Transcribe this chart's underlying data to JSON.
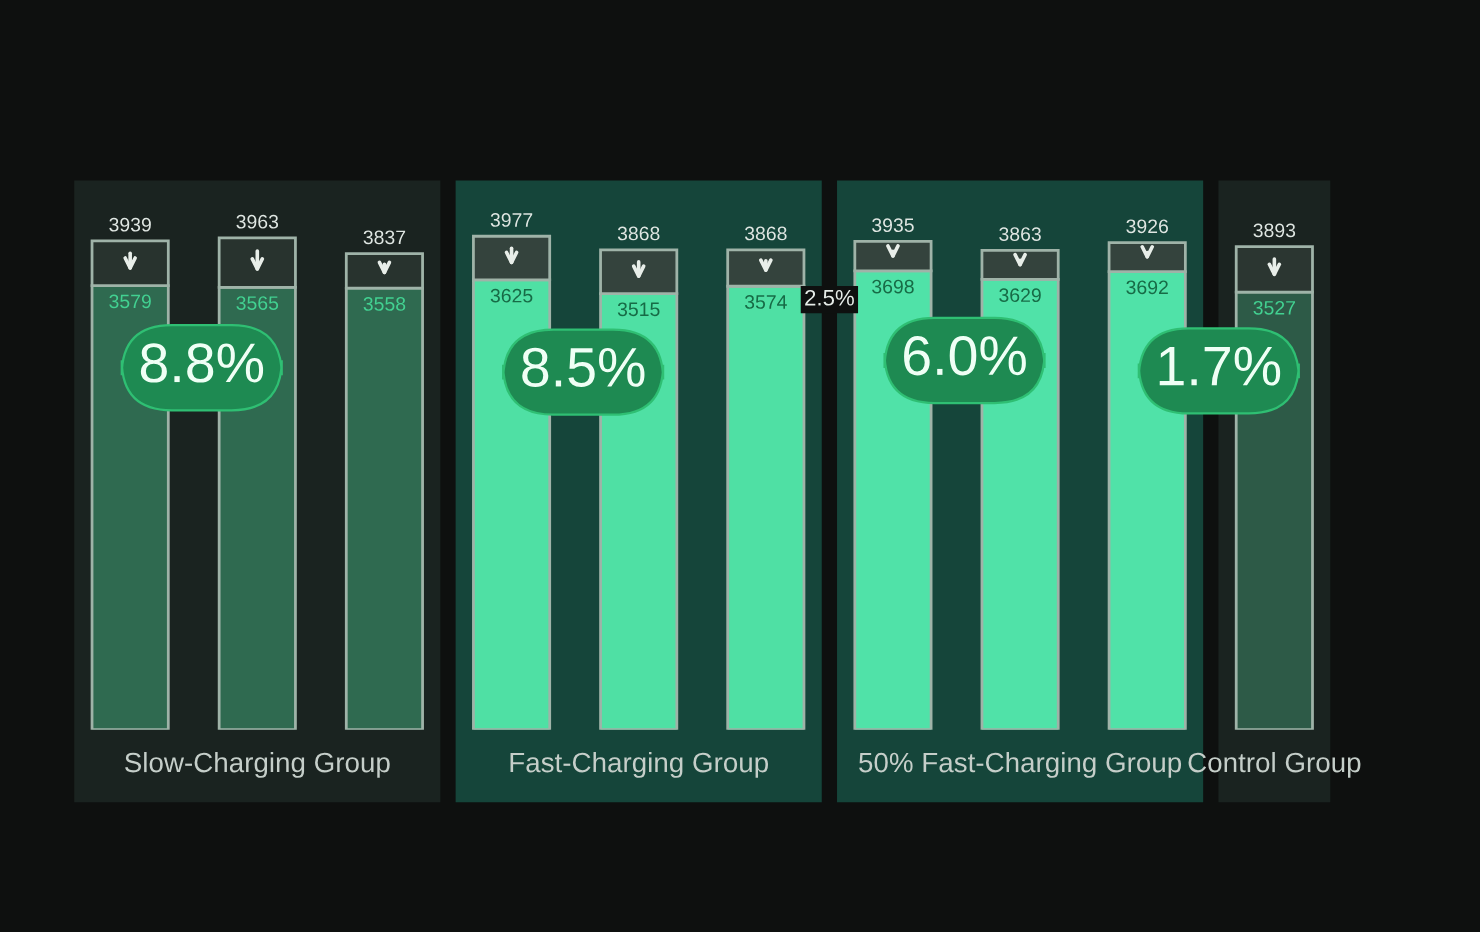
{
  "chart_data": {
    "type": "bar",
    "stacked": true,
    "categories": [
      null,
      "Slow-Charging Group",
      null,
      null,
      "Fast-Charging Group",
      null,
      null,
      "50% Fast-Charging Group",
      null,
      "Control Group"
    ],
    "series": [
      {
        "colors": [
          "#2f6a50",
          "#2f6a50",
          "#2f6a50",
          "#4fe0a4",
          "#4fe0a4",
          "#4fe0a4",
          "#50e2a8",
          "#50e2a8",
          "#50e2a8",
          "#2d5a47"
        ],
        "values": [
          3579,
          3565,
          3558,
          3625,
          3515,
          3574,
          3698,
          3629,
          3692,
          3527
        ],
        "value_labels": [
          "3579",
          "3565",
          "3558",
          "3625",
          "3515",
          "3574",
          "3698",
          "3629",
          "3692",
          "3527"
        ]
      },
      {
        "colors": [
          "#28332e",
          "#28332e",
          "#28332e",
          "#34433d",
          "#34433d",
          "#34433d",
          "#34433d",
          "#34433d",
          "#34433d",
          "#2b3631"
        ],
        "values": [
          360,
          398,
          279,
          352,
          353,
          294,
          237,
          234,
          234,
          366
        ]
      }
    ],
    "totals": [
      "3939",
      "3963",
      "3837",
      "3977",
      "3868",
      "3868",
      "3935",
      "3863",
      "3926",
      "3893"
    ],
    "annotations": [
      "8.8%",
      "8.5%",
      "6.0%",
      "1.7%",
      "2.5%"
    ],
    "tick_labels": "x"
  }
}
